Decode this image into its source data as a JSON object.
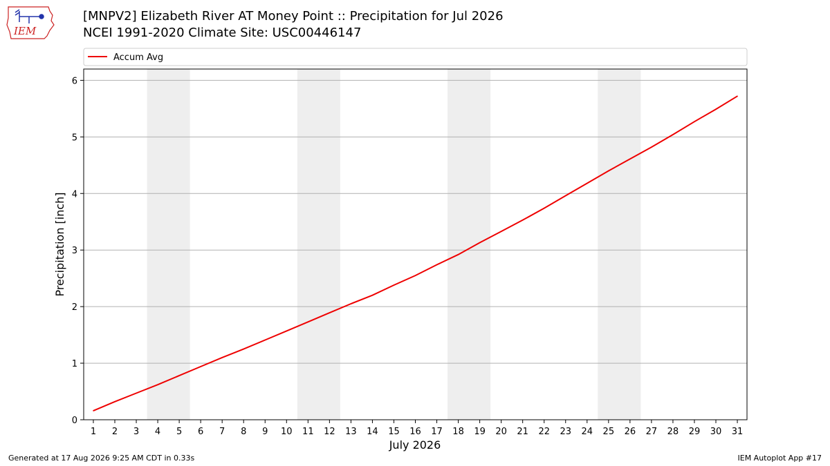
{
  "header": {
    "title_line1": "[MNPV2] Elizabeth River  AT Money Point :: Precipitation for Jul 2026",
    "title_line2": "NCEI 1991-2020 Climate Site: USC00446147",
    "logo_text": "IEM"
  },
  "footer": {
    "generated": "Generated at 17 Aug 2026 9:25 AM CDT in 0.33s",
    "app": "IEM Autoplot App #17"
  },
  "colors": {
    "series": "#ee0000",
    "weekend_band": "#eeeeee",
    "grid": "#b0b0b0",
    "logo_red": "#cc2222",
    "logo_blue": "#2233aa"
  },
  "chart_data": {
    "type": "line",
    "title": "[MNPV2] Elizabeth River  AT Money Point :: Precipitation for Jul 2026",
    "subtitle": "NCEI 1991-2020 Climate Site: USC00446147",
    "xlabel": "July 2026",
    "ylabel": "Precipitation [inch]",
    "x": [
      1,
      2,
      3,
      4,
      5,
      6,
      7,
      8,
      9,
      10,
      11,
      12,
      13,
      14,
      15,
      16,
      17,
      18,
      19,
      20,
      21,
      22,
      23,
      24,
      25,
      26,
      27,
      28,
      29,
      30,
      31
    ],
    "xlim": [
      0.55,
      31.45
    ],
    "ylim": [
      0,
      6.2
    ],
    "yticks": [
      0,
      1,
      2,
      3,
      4,
      5,
      6
    ],
    "shaded_bands": [
      [
        3.5,
        5.5
      ],
      [
        10.5,
        12.5
      ],
      [
        17.5,
        19.5
      ],
      [
        24.5,
        26.5
      ]
    ],
    "grid": "horizontal",
    "legend_position": "top",
    "series": [
      {
        "name": "Accum Avg",
        "color": "#ee0000",
        "values": [
          0.16,
          0.32,
          0.47,
          0.62,
          0.78,
          0.94,
          1.1,
          1.25,
          1.41,
          1.57,
          1.73,
          1.89,
          2.05,
          2.2,
          2.38,
          2.55,
          2.74,
          2.92,
          3.13,
          3.33,
          3.53,
          3.74,
          3.96,
          4.18,
          4.4,
          4.61,
          4.82,
          5.04,
          5.27,
          5.49,
          5.72
        ]
      }
    ]
  }
}
